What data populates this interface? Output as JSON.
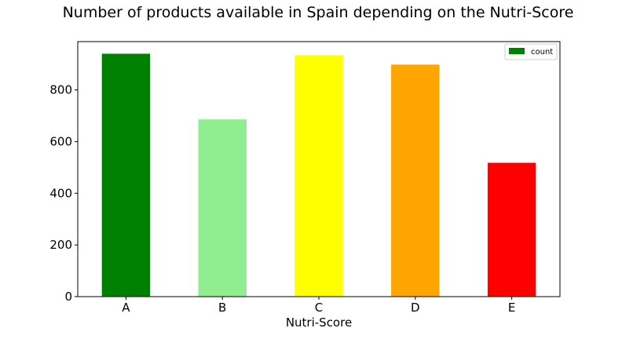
{
  "chart_data": {
    "type": "bar",
    "title": "Number of products available in Spain depending on the Nutri-Score",
    "xlabel": "Nutri-Score",
    "ylabel": "",
    "categories": [
      "A",
      "B",
      "C",
      "D",
      "E"
    ],
    "series": [
      {
        "name": "count",
        "values": [
          940,
          686,
          934,
          898,
          518
        ],
        "colors": [
          "#008000",
          "#90ee90",
          "#ffff00",
          "#ffa500",
          "#ff0000"
        ]
      }
    ],
    "ylim": [
      0,
      987
    ],
    "yticks": [
      0,
      200,
      400,
      600,
      800
    ],
    "grid": false,
    "legend_position": "top-right"
  }
}
